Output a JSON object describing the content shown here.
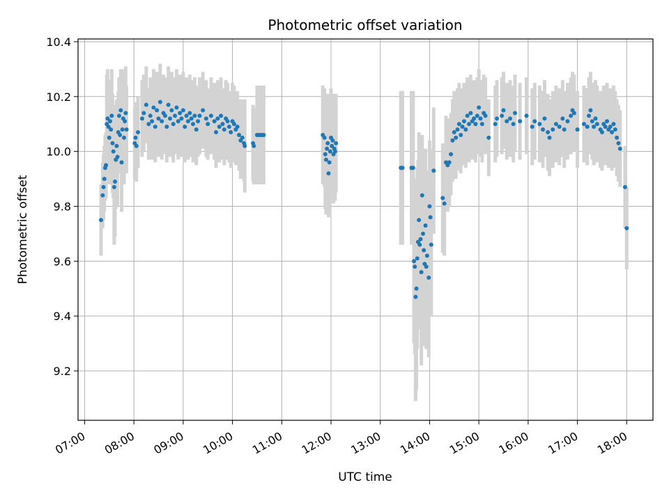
{
  "chart_data": {
    "type": "scatter",
    "title": "Photometric offset variation",
    "xlabel": "UTC time",
    "ylabel": "Photometric offset",
    "x_ticks": [
      "07:00",
      "08:00",
      "09:00",
      "10:00",
      "11:00",
      "12:00",
      "13:00",
      "14:00",
      "15:00",
      "16:00",
      "17:00",
      "18:00"
    ],
    "y_ticks": [
      "9.2",
      "9.4",
      "9.6",
      "9.8",
      "10.0",
      "10.2",
      "10.4"
    ],
    "xlim": [
      "06:52",
      "18:32"
    ],
    "ylim": [
      9.02,
      10.41
    ],
    "grid": true,
    "colors": {
      "points": "#1f77b4",
      "error_bars": "#d3d3d3"
    },
    "series": [
      {
        "points": [
          [
            "07:20",
            9.75,
            0.13
          ],
          [
            "07:22",
            9.84,
            0.12
          ],
          [
            "07:23",
            9.87,
            0.12
          ],
          [
            "07:24",
            9.9,
            0.12
          ],
          [
            "07:25",
            9.94,
            0.12
          ],
          [
            "07:26",
            9.95,
            0.12
          ],
          [
            "07:27",
            10.1,
            0.18
          ],
          [
            "07:28",
            10.12,
            0.18
          ],
          [
            "07:29",
            10.09,
            0.16
          ],
          [
            "07:30",
            10.05,
            0.17
          ],
          [
            "07:31",
            10.11,
            0.15
          ],
          [
            "07:32",
            10.08,
            0.16
          ],
          [
            "07:33",
            10.13,
            0.17
          ],
          [
            "07:34",
            10.03,
            0.18
          ],
          [
            "07:35",
            10.0,
            0.17
          ],
          [
            "07:36",
            9.87,
            0.21
          ],
          [
            "07:37",
            9.89,
            0.2
          ],
          [
            "07:38",
            9.97,
            0.18
          ],
          [
            "07:39",
            10.02,
            0.17
          ],
          [
            "07:40",
            9.98,
            0.18
          ],
          [
            "07:41",
            10.07,
            0.15
          ],
          [
            "07:42",
            10.13,
            0.14
          ],
          [
            "07:43",
            10.06,
            0.14
          ],
          [
            "07:44",
            10.15,
            0.15
          ],
          [
            "07:45",
            9.96,
            0.18
          ],
          [
            "07:46",
            10.08,
            0.2
          ],
          [
            "07:47",
            10.12,
            0.18
          ],
          [
            "07:48",
            10.05,
            0.17
          ],
          [
            "07:49",
            10.11,
            0.16
          ],
          [
            "07:50",
            10.14,
            0.17
          ],
          [
            "07:51",
            10.08,
            0.16
          ],
          [
            "08:01",
            10.03,
            0.13
          ],
          [
            "08:02",
            10.05,
            0.13
          ],
          [
            "08:03",
            10.02,
            0.13
          ],
          [
            "08:05",
            10.07,
            0.13
          ],
          [
            "08:10",
            10.12,
            0.14
          ],
          [
            "08:12",
            10.14,
            0.14
          ],
          [
            "08:15",
            10.17,
            0.14
          ],
          [
            "08:18",
            10.1,
            0.13
          ],
          [
            "08:20",
            10.13,
            0.14
          ],
          [
            "08:22",
            10.11,
            0.14
          ],
          [
            "08:24",
            10.16,
            0.14
          ],
          [
            "08:26",
            10.09,
            0.13
          ],
          [
            "08:28",
            10.15,
            0.14
          ],
          [
            "08:30",
            10.12,
            0.14
          ],
          [
            "08:32",
            10.18,
            0.14
          ],
          [
            "08:34",
            10.11,
            0.14
          ],
          [
            "08:36",
            10.14,
            0.14
          ],
          [
            "08:38",
            10.13,
            0.14
          ],
          [
            "08:40",
            10.09,
            0.13
          ],
          [
            "08:42",
            10.17,
            0.14
          ],
          [
            "08:44",
            10.12,
            0.14
          ],
          [
            "08:46",
            10.15,
            0.14
          ],
          [
            "08:48",
            10.1,
            0.14
          ],
          [
            "08:50",
            10.13,
            0.14
          ],
          [
            "08:52",
            10.16,
            0.14
          ],
          [
            "08:54",
            10.11,
            0.14
          ],
          [
            "08:56",
            10.14,
            0.14
          ],
          [
            "08:58",
            10.12,
            0.14
          ],
          [
            "09:00",
            10.15,
            0.14
          ],
          [
            "09:02",
            10.09,
            0.13
          ],
          [
            "09:04",
            10.13,
            0.14
          ],
          [
            "09:06",
            10.11,
            0.14
          ],
          [
            "09:08",
            10.14,
            0.14
          ],
          [
            "09:10",
            10.12,
            0.14
          ],
          [
            "09:12",
            10.1,
            0.14
          ],
          [
            "09:14",
            10.13,
            0.14
          ],
          [
            "09:16",
            10.08,
            0.13
          ],
          [
            "09:18",
            10.11,
            0.13
          ],
          [
            "09:20",
            10.13,
            0.14
          ],
          [
            "09:24",
            10.15,
            0.14
          ],
          [
            "09:28",
            10.12,
            0.14
          ],
          [
            "09:30",
            10.1,
            0.13
          ],
          [
            "09:34",
            10.13,
            0.14
          ],
          [
            "09:38",
            10.11,
            0.14
          ],
          [
            "09:40",
            10.07,
            0.13
          ],
          [
            "09:42",
            10.12,
            0.14
          ],
          [
            "09:44",
            10.09,
            0.13
          ],
          [
            "09:46",
            10.13,
            0.14
          ],
          [
            "09:48",
            10.1,
            0.13
          ],
          [
            "09:50",
            10.08,
            0.13
          ],
          [
            "09:52",
            10.12,
            0.14
          ],
          [
            "09:54",
            10.11,
            0.14
          ],
          [
            "09:56",
            10.09,
            0.13
          ],
          [
            "09:58",
            10.07,
            0.13
          ],
          [
            "10:00",
            10.11,
            0.14
          ],
          [
            "10:02",
            10.1,
            0.14
          ],
          [
            "10:04",
            10.08,
            0.13
          ],
          [
            "10:06",
            10.09,
            0.13
          ],
          [
            "10:08",
            10.06,
            0.13
          ],
          [
            "10:10",
            10.04,
            0.14
          ],
          [
            "10:12",
            10.05,
            0.14
          ],
          [
            "10:14",
            10.03,
            0.14
          ],
          [
            "10:15",
            10.02,
            0.17
          ],
          [
            "10:25",
            10.03,
            0.14
          ],
          [
            "10:26",
            10.02,
            0.14
          ],
          [
            "10:30",
            10.06,
            0.18
          ],
          [
            "10:32",
            10.06,
            0.18
          ],
          [
            "10:34",
            10.06,
            0.18
          ],
          [
            "10:36",
            10.06,
            0.18
          ],
          [
            "10:38",
            10.06,
            0.18
          ],
          [
            "11:50",
            10.06,
            0.18
          ],
          [
            "11:52",
            10.05,
            0.18
          ],
          [
            "11:53",
            9.99,
            0.2
          ],
          [
            "11:54",
            9.97,
            0.2
          ],
          [
            "11:55",
            10.01,
            0.18
          ],
          [
            "11:56",
            10.03,
            0.18
          ],
          [
            "11:57",
            9.92,
            0.16
          ],
          [
            "11:58",
            9.96,
            0.17
          ],
          [
            "11:59",
            10.0,
            0.18
          ],
          [
            "12:00",
            10.05,
            0.18
          ],
          [
            "12:01",
            10.02,
            0.17
          ],
          [
            "12:02",
            10.04,
            0.17
          ],
          [
            "12:03",
            9.99,
            0.18
          ],
          [
            "12:04",
            10.01,
            0.17
          ],
          [
            "12:05",
            10.0,
            0.18
          ],
          [
            "12:06",
            10.03,
            0.18
          ],
          [
            "13:25",
            9.94,
            0.28
          ],
          [
            "13:26",
            9.94,
            0.28
          ],
          [
            "13:27",
            9.94,
            0.28
          ],
          [
            "13:38",
            9.94,
            0.28
          ],
          [
            "13:39",
            9.94,
            0.28
          ],
          [
            "13:40",
            9.94,
            0.28
          ],
          [
            "13:41",
            9.6,
            0.3
          ],
          [
            "13:42",
            9.58,
            0.32
          ],
          [
            "13:43",
            9.47,
            0.38
          ],
          [
            "13:44",
            9.5,
            0.37
          ],
          [
            "13:45",
            9.61,
            0.33
          ],
          [
            "13:46",
            9.67,
            0.3
          ],
          [
            "13:47",
            9.75,
            0.32
          ],
          [
            "13:48",
            9.66,
            0.31
          ],
          [
            "13:49",
            9.68,
            0.3
          ],
          [
            "13:50",
            9.56,
            0.34
          ],
          [
            "13:51",
            9.84,
            0.22
          ],
          [
            "13:52",
            9.7,
            0.27
          ],
          [
            "13:53",
            9.64,
            0.3
          ],
          [
            "13:54",
            9.59,
            0.3
          ],
          [
            "13:55",
            9.73,
            0.28
          ],
          [
            "13:56",
            9.58,
            0.3
          ],
          [
            "13:57",
            9.62,
            0.31
          ],
          [
            "13:59",
            9.54,
            0.29
          ],
          [
            "14:00",
            9.8,
            0.24
          ],
          [
            "14:01",
            9.76,
            0.25
          ],
          [
            "14:02",
            9.66,
            0.26
          ],
          [
            "14:05",
            9.93,
            0.23
          ],
          [
            "14:16",
            9.83,
            0.2
          ],
          [
            "14:18",
            9.81,
            0.19
          ],
          [
            "14:20",
            9.96,
            0.17
          ],
          [
            "14:22",
            9.95,
            0.17
          ],
          [
            "14:24",
            9.96,
            0.16
          ],
          [
            "14:26",
            9.99,
            0.15
          ],
          [
            "14:28",
            10.04,
            0.15
          ],
          [
            "14:30",
            10.07,
            0.15
          ],
          [
            "14:32",
            10.05,
            0.15
          ],
          [
            "14:34",
            10.08,
            0.15
          ],
          [
            "14:36",
            10.1,
            0.15
          ],
          [
            "14:38",
            10.06,
            0.14
          ],
          [
            "14:40",
            10.09,
            0.14
          ],
          [
            "14:42",
            10.11,
            0.14
          ],
          [
            "14:44",
            10.08,
            0.14
          ],
          [
            "14:46",
            10.13,
            0.14
          ],
          [
            "14:48",
            10.1,
            0.14
          ],
          [
            "14:50",
            10.14,
            0.14
          ],
          [
            "14:52",
            10.11,
            0.14
          ],
          [
            "14:54",
            10.12,
            0.14
          ],
          [
            "14:56",
            10.1,
            0.14
          ],
          [
            "14:58",
            10.13,
            0.14
          ],
          [
            "15:00",
            10.16,
            0.14
          ],
          [
            "15:02",
            10.12,
            0.14
          ],
          [
            "15:04",
            10.1,
            0.14
          ],
          [
            "15:06",
            10.14,
            0.14
          ],
          [
            "15:08",
            10.13,
            0.14
          ],
          [
            "15:12",
            10.05,
            0.14
          ],
          [
            "15:20",
            10.1,
            0.14
          ],
          [
            "15:22",
            10.12,
            0.14
          ],
          [
            "15:28",
            10.13,
            0.14
          ],
          [
            "15:30",
            10.15,
            0.14
          ],
          [
            "15:34",
            10.11,
            0.14
          ],
          [
            "15:38",
            10.12,
            0.14
          ],
          [
            "15:42",
            10.1,
            0.14
          ],
          [
            "15:44",
            10.14,
            0.14
          ],
          [
            "15:50",
            10.11,
            0.14
          ],
          [
            "15:58",
            10.13,
            0.14
          ],
          [
            "16:05",
            10.09,
            0.14
          ],
          [
            "16:08",
            10.11,
            0.14
          ],
          [
            "16:14",
            10.1,
            0.14
          ],
          [
            "16:18",
            10.08,
            0.14
          ],
          [
            "16:20",
            10.12,
            0.14
          ],
          [
            "16:24",
            10.07,
            0.14
          ],
          [
            "16:26",
            10.05,
            0.14
          ],
          [
            "16:30",
            10.08,
            0.14
          ],
          [
            "16:34",
            10.1,
            0.14
          ],
          [
            "16:38",
            10.09,
            0.14
          ],
          [
            "16:42",
            10.12,
            0.14
          ],
          [
            "16:44",
            10.08,
            0.14
          ],
          [
            "16:48",
            10.11,
            0.14
          ],
          [
            "16:52",
            10.13,
            0.14
          ],
          [
            "16:54",
            10.15,
            0.14
          ],
          [
            "16:56",
            10.14,
            0.14
          ],
          [
            "17:00",
            10.08,
            0.14
          ],
          [
            "17:08",
            10.1,
            0.14
          ],
          [
            "17:12",
            10.09,
            0.14
          ],
          [
            "17:14",
            10.13,
            0.14
          ],
          [
            "17:16",
            10.15,
            0.14
          ],
          [
            "17:18",
            10.11,
            0.14
          ],
          [
            "17:20",
            10.09,
            0.14
          ],
          [
            "17:22",
            10.12,
            0.14
          ],
          [
            "17:24",
            10.1,
            0.14
          ],
          [
            "17:28",
            10.08,
            0.14
          ],
          [
            "17:30",
            10.07,
            0.14
          ],
          [
            "17:32",
            10.1,
            0.14
          ],
          [
            "17:34",
            10.09,
            0.14
          ],
          [
            "17:36",
            10.11,
            0.14
          ],
          [
            "17:38",
            10.08,
            0.14
          ],
          [
            "17:40",
            10.09,
            0.14
          ],
          [
            "17:42",
            10.07,
            0.14
          ],
          [
            "17:44",
            10.1,
            0.14
          ],
          [
            "17:46",
            10.08,
            0.14
          ],
          [
            "17:48",
            10.05,
            0.14
          ],
          [
            "17:50",
            10.03,
            0.14
          ],
          [
            "17:52",
            10.01,
            0.14
          ],
          [
            "17:58",
            9.87,
            0.15
          ],
          [
            "18:00",
            9.72,
            0.15
          ]
        ]
      }
    ]
  }
}
